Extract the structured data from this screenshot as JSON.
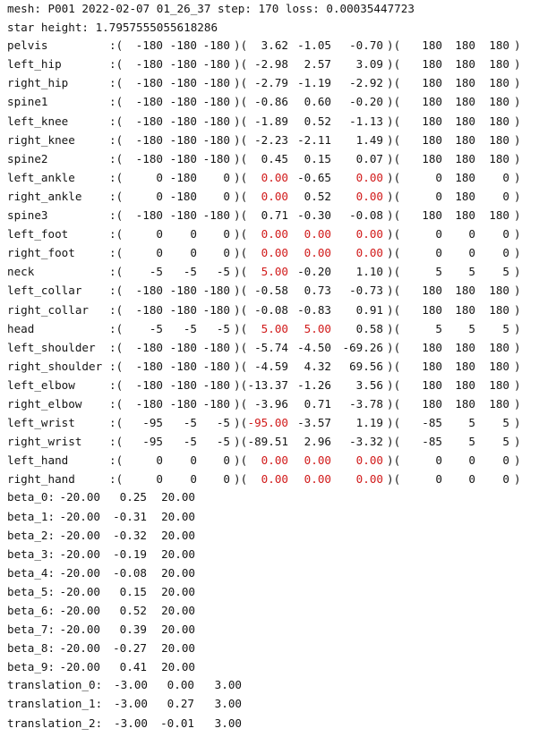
{
  "header": {
    "mesh_line": "mesh: P001 2022-02-07 01_26_37 step: 170 loss: 0.00035447723",
    "star_height_line": "star height: 1.7957555055618286"
  },
  "joints": [
    {
      "name": "pelvis",
      "sep": ":(",
      "min": [
        "-180",
        "-180",
        "-180"
      ],
      "mid": ")(",
      "val": [
        "3.62",
        "-1.05",
        "-0.70"
      ],
      "end": ")(",
      "max": [
        "180",
        "180",
        "180"
      ],
      "close": ")",
      "red": [
        false,
        false,
        false
      ]
    },
    {
      "name": "left_hip",
      "sep": ":(",
      "min": [
        "-180",
        "-180",
        "-180"
      ],
      "mid": ")(",
      "val": [
        "-2.98",
        "2.57",
        "3.09"
      ],
      "end": ")(",
      "max": [
        "180",
        "180",
        "180"
      ],
      "close": ")",
      "red": [
        false,
        false,
        false
      ]
    },
    {
      "name": "right_hip",
      "sep": ":(",
      "min": [
        "-180",
        "-180",
        "-180"
      ],
      "mid": ")(",
      "val": [
        "-2.79",
        "-1.19",
        "-2.92"
      ],
      "end": ")(",
      "max": [
        "180",
        "180",
        "180"
      ],
      "close": ")",
      "red": [
        false,
        false,
        false
      ]
    },
    {
      "name": "spine1",
      "sep": ":(",
      "min": [
        "-180",
        "-180",
        "-180"
      ],
      "mid": ")(",
      "val": [
        "-0.86",
        "0.60",
        "-0.20"
      ],
      "end": ")(",
      "max": [
        "180",
        "180",
        "180"
      ],
      "close": ")",
      "red": [
        false,
        false,
        false
      ]
    },
    {
      "name": "left_knee",
      "sep": ":(",
      "min": [
        "-180",
        "-180",
        "-180"
      ],
      "mid": ")(",
      "val": [
        "-1.89",
        "0.52",
        "-1.13"
      ],
      "end": ")(",
      "max": [
        "180",
        "180",
        "180"
      ],
      "close": ")",
      "red": [
        false,
        false,
        false
      ]
    },
    {
      "name": "right_knee",
      "sep": ":(",
      "min": [
        "-180",
        "-180",
        "-180"
      ],
      "mid": ")(",
      "val": [
        "-2.23",
        "-2.11",
        "1.49"
      ],
      "end": ")(",
      "max": [
        "180",
        "180",
        "180"
      ],
      "close": ")",
      "red": [
        false,
        false,
        false
      ]
    },
    {
      "name": "spine2",
      "sep": ":(",
      "min": [
        "-180",
        "-180",
        "-180"
      ],
      "mid": ")(",
      "val": [
        "0.45",
        "0.15",
        "0.07"
      ],
      "end": ")(",
      "max": [
        "180",
        "180",
        "180"
      ],
      "close": ")",
      "red": [
        false,
        false,
        false
      ]
    },
    {
      "name": "left_ankle",
      "sep": ":(",
      "min": [
        "0",
        "-180",
        "0"
      ],
      "mid": ")(",
      "val": [
        "0.00",
        "-0.65",
        "0.00"
      ],
      "end": ")(",
      "max": [
        "0",
        "180",
        "0"
      ],
      "close": ")",
      "red": [
        true,
        false,
        true
      ]
    },
    {
      "name": "right_ankle",
      "sep": ":(",
      "min": [
        "0",
        "-180",
        "0"
      ],
      "mid": ")(",
      "val": [
        "0.00",
        "0.52",
        "0.00"
      ],
      "end": ")(",
      "max": [
        "0",
        "180",
        "0"
      ],
      "close": ")",
      "red": [
        true,
        false,
        true
      ]
    },
    {
      "name": "spine3",
      "sep": ":(",
      "min": [
        "-180",
        "-180",
        "-180"
      ],
      "mid": ")(",
      "val": [
        "0.71",
        "-0.30",
        "-0.08"
      ],
      "end": ")(",
      "max": [
        "180",
        "180",
        "180"
      ],
      "close": ")",
      "red": [
        false,
        false,
        false
      ]
    },
    {
      "name": "left_foot",
      "sep": ":(",
      "min": [
        "0",
        "0",
        "0"
      ],
      "mid": ")(",
      "val": [
        "0.00",
        "0.00",
        "0.00"
      ],
      "end": ")(",
      "max": [
        "0",
        "0",
        "0"
      ],
      "close": ")",
      "red": [
        true,
        true,
        true
      ]
    },
    {
      "name": "right_foot",
      "sep": ":(",
      "min": [
        "0",
        "0",
        "0"
      ],
      "mid": ")(",
      "val": [
        "0.00",
        "0.00",
        "0.00"
      ],
      "end": ")(",
      "max": [
        "0",
        "0",
        "0"
      ],
      "close": ")",
      "red": [
        true,
        true,
        true
      ]
    },
    {
      "name": "neck",
      "sep": ":(",
      "min": [
        "-5",
        "-5",
        "-5"
      ],
      "mid": ")(",
      "val": [
        "5.00",
        "-0.20",
        "1.10"
      ],
      "end": ")(",
      "max": [
        "5",
        "5",
        "5"
      ],
      "close": ")",
      "red": [
        true,
        false,
        false
      ]
    },
    {
      "name": "left_collar",
      "sep": ":(",
      "min": [
        "-180",
        "-180",
        "-180"
      ],
      "mid": ")(",
      "val": [
        "-0.58",
        "0.73",
        "-0.73"
      ],
      "end": ")(",
      "max": [
        "180",
        "180",
        "180"
      ],
      "close": ")",
      "red": [
        false,
        false,
        false
      ]
    },
    {
      "name": "right_collar",
      "sep": ":(",
      "min": [
        "-180",
        "-180",
        "-180"
      ],
      "mid": ")(",
      "val": [
        "-0.08",
        "-0.83",
        "0.91"
      ],
      "end": ")(",
      "max": [
        "180",
        "180",
        "180"
      ],
      "close": ")",
      "red": [
        false,
        false,
        false
      ]
    },
    {
      "name": "head",
      "sep": ":(",
      "min": [
        "-5",
        "-5",
        "-5"
      ],
      "mid": ")(",
      "val": [
        "5.00",
        "5.00",
        "0.58"
      ],
      "end": ")(",
      "max": [
        "5",
        "5",
        "5"
      ],
      "close": ")",
      "red": [
        true,
        true,
        false
      ]
    },
    {
      "name": "left_shoulder",
      "sep": ":(",
      "min": [
        "-180",
        "-180",
        "-180"
      ],
      "mid": ")(",
      "val": [
        "-5.74",
        "-4.50",
        "-69.26"
      ],
      "end": ")(",
      "max": [
        "180",
        "180",
        "180"
      ],
      "close": ")",
      "red": [
        false,
        false,
        false
      ]
    },
    {
      "name": "right_shoulder",
      "sep": ":(",
      "min": [
        "-180",
        "-180",
        "-180"
      ],
      "mid": ")(",
      "val": [
        "-4.59",
        "4.32",
        "69.56"
      ],
      "end": ")(",
      "max": [
        "180",
        "180",
        "180"
      ],
      "close": ")",
      "red": [
        false,
        false,
        false
      ]
    },
    {
      "name": "left_elbow",
      "sep": ":(",
      "min": [
        "-180",
        "-180",
        "-180"
      ],
      "mid": ")(",
      "val": [
        "-13.37",
        "-1.26",
        "3.56"
      ],
      "end": ")(",
      "max": [
        "180",
        "180",
        "180"
      ],
      "close": ")",
      "red": [
        false,
        false,
        false
      ]
    },
    {
      "name": "right_elbow",
      "sep": ":(",
      "min": [
        "-180",
        "-180",
        "-180"
      ],
      "mid": ")(",
      "val": [
        "-3.96",
        "0.71",
        "-3.78"
      ],
      "end": ")(",
      "max": [
        "180",
        "180",
        "180"
      ],
      "close": ")",
      "red": [
        false,
        false,
        false
      ]
    },
    {
      "name": "left_wrist",
      "sep": ":(",
      "min": [
        "-95",
        "-5",
        "-5"
      ],
      "mid": ")(",
      "val": [
        "-95.00",
        "-3.57",
        "1.19"
      ],
      "end": ")(",
      "max": [
        "-85",
        "5",
        "5"
      ],
      "close": ")",
      "red": [
        true,
        false,
        false
      ]
    },
    {
      "name": "right_wrist",
      "sep": ":(",
      "min": [
        "-95",
        "-5",
        "-5"
      ],
      "mid": ")(",
      "val": [
        "-89.51",
        "2.96",
        "-3.32"
      ],
      "end": ")(",
      "max": [
        "-85",
        "5",
        "5"
      ],
      "close": ")",
      "red": [
        false,
        false,
        false
      ]
    },
    {
      "name": "left_hand",
      "sep": ":(",
      "min": [
        "0",
        "0",
        "0"
      ],
      "mid": ")(",
      "val": [
        "0.00",
        "0.00",
        "0.00"
      ],
      "end": ")(",
      "max": [
        "0",
        "0",
        "0"
      ],
      "close": ")",
      "red": [
        true,
        true,
        true
      ]
    },
    {
      "name": "right_hand",
      "sep": ":(",
      "min": [
        "0",
        "0",
        "0"
      ],
      "mid": ")(",
      "val": [
        "0.00",
        "0.00",
        "0.00"
      ],
      "end": ")(",
      "max": [
        "0",
        "0",
        "0"
      ],
      "close": ")",
      "red": [
        true,
        true,
        true
      ]
    }
  ],
  "betas": [
    {
      "label": "beta_0:",
      "min": "-20.00",
      "val": "0.25",
      "max": "20.00"
    },
    {
      "label": "beta_1:",
      "min": "-20.00",
      "val": "-0.31",
      "max": "20.00"
    },
    {
      "label": "beta_2:",
      "min": "-20.00",
      "val": "-0.32",
      "max": "20.00"
    },
    {
      "label": "beta_3:",
      "min": "-20.00",
      "val": "-0.19",
      "max": "20.00"
    },
    {
      "label": "beta_4:",
      "min": "-20.00",
      "val": "-0.08",
      "max": "20.00"
    },
    {
      "label": "beta_5:",
      "min": "-20.00",
      "val": "0.15",
      "max": "20.00"
    },
    {
      "label": "beta_6:",
      "min": "-20.00",
      "val": "0.52",
      "max": "20.00"
    },
    {
      "label": "beta_7:",
      "min": "-20.00",
      "val": "0.39",
      "max": "20.00"
    },
    {
      "label": "beta_8:",
      "min": "-20.00",
      "val": "-0.27",
      "max": "20.00"
    },
    {
      "label": "beta_9:",
      "min": "-20.00",
      "val": "0.41",
      "max": "20.00"
    }
  ],
  "translations": [
    {
      "label": "translation_0:",
      "min": "-3.00",
      "val": "0.00",
      "max": "3.00"
    },
    {
      "label": "translation_1:",
      "min": "-3.00",
      "val": "0.27",
      "max": "3.00"
    },
    {
      "label": "translation_2:",
      "min": "-3.00",
      "val": "-0.01",
      "max": "3.00"
    }
  ],
  "colors": {
    "text": "#141414",
    "out_of_range": "#d11a1a",
    "background": "#ffffff"
  }
}
